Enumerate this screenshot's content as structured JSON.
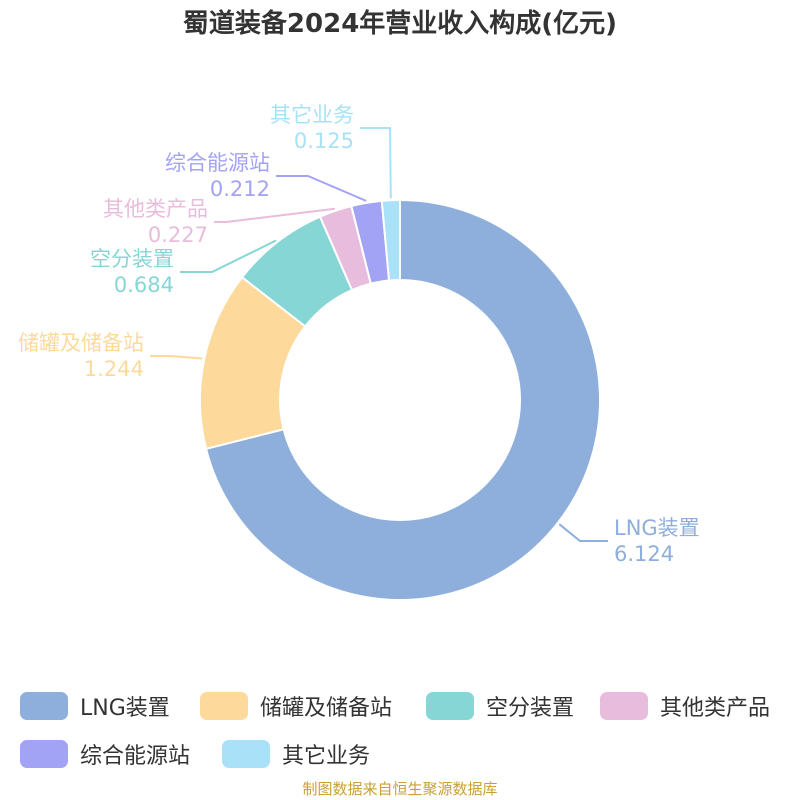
{
  "chart_data": {
    "type": "pie",
    "title": "蜀道装备2024年营业收入构成(亿元)",
    "categories": [
      "LNG装置",
      "储罐及储备站",
      "空分装置",
      "其他类产品",
      "综合能源站",
      "其它业务"
    ],
    "values": [
      6.124,
      1.244,
      0.684,
      0.227,
      0.212,
      0.125
    ],
    "value_labels": [
      "6.124",
      "1.244",
      "0.684",
      "0.227",
      "0.212",
      "0.125"
    ],
    "colors": [
      "#8eaedb",
      "#fdd99b",
      "#87d6d6",
      "#e8bcdc",
      "#a3a3f5",
      "#a9e1f8"
    ],
    "donut": true,
    "legend_position": "bottom"
  },
  "source_note": "制图数据来自恒生聚源数据库"
}
